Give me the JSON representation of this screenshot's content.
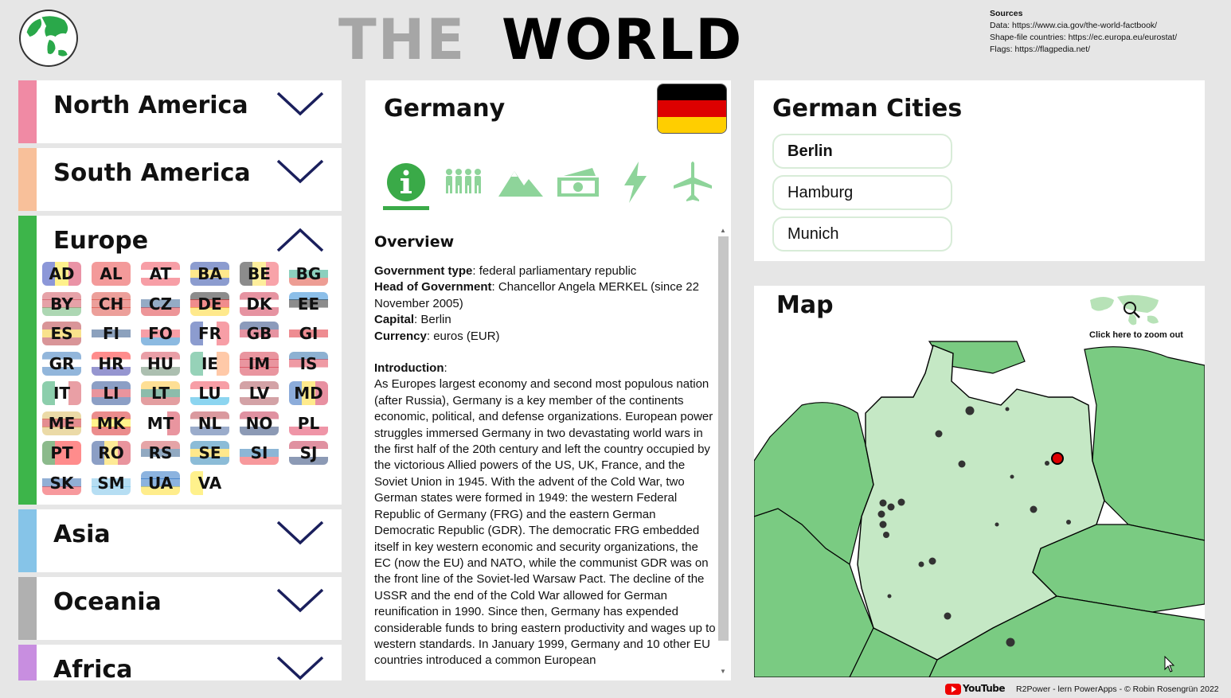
{
  "header": {
    "title_left": "THE",
    "title_right": "WORLD",
    "sources_title": "Sources",
    "sources": [
      "Data: https://www.cia.gov/the-world-factbook/",
      "Shape-file countries: https://ec.europa.eu/eurostat/",
      "Flags: https://flagpedia.net/"
    ]
  },
  "continents": [
    {
      "name": "North America",
      "color": "#f08aa4",
      "expanded": false
    },
    {
      "name": "South America",
      "color": "#f8c09a",
      "expanded": false
    },
    {
      "name": "Europe",
      "color": "#3db54a",
      "expanded": true
    },
    {
      "name": "Asia",
      "color": "#86c4e8",
      "expanded": false
    },
    {
      "name": "Oceania",
      "color": "#b0b0b0",
      "expanded": false
    },
    {
      "name": "Africa",
      "color": "#c88ee0",
      "expanded": false
    }
  ],
  "europe_flags": [
    "AD",
    "AL",
    "AT",
    "BA",
    "BE",
    "BG",
    "BY",
    "CH",
    "CZ",
    "DE",
    "DK",
    "EE",
    "ES",
    "FI",
    "FO",
    "FR",
    "GB",
    "GI",
    "GR",
    "HR",
    "HU",
    "IE",
    "IM",
    "IS",
    "IT",
    "LI",
    "LT",
    "LU",
    "LV",
    "MD",
    "ME",
    "MK",
    "MT",
    "NL",
    "NO",
    "PL",
    "PT",
    "RO",
    "RS",
    "SE",
    "SI",
    "SJ",
    "SK",
    "SM",
    "UA",
    "VA"
  ],
  "country": {
    "name": "Germany",
    "section_title": "Overview",
    "government_label": "Government type",
    "government": ": federal parliamentary republic",
    "head_label": "Head of Government",
    "head": ": Chancellor Angela MERKEL (since 22 November 2005)",
    "capital_label": "Capital",
    "capital": ": Berlin",
    "currency_label": "Currency",
    "currency": ": euros (EUR)",
    "intro_label": "Introduction",
    "intro_colon": ":",
    "intro": "As Europes largest economy and second most populous nation (after Russia), Germany is a key member of the continents economic, political, and defense organizations. European power struggles immersed Germany in two devastating world wars in the first half of the 20th century and left the country occupied by the victorious Allied powers of the US, UK, France, and the Soviet Union in 1945. With the advent of the Cold War, two German states were formed in 1949: the western Federal Republic of Germany (FRG) and the eastern German Democratic Republic (GDR). The democratic FRG embedded itself in key western economic and security organizations, the EC (now the EU) and NATO, while the communist GDR was on the front line of the Soviet-led Warsaw Pact. The decline of the USSR and the end of the Cold War allowed for German reunification in 1990. Since then, Germany has expended considerable funds to bring eastern productivity and wages up to western standards. In January 1999, Germany and 10 other EU countries introduced a common European",
    "tabs": [
      "info-icon",
      "people-icon",
      "mountain-icon",
      "money-icon",
      "energy-icon",
      "airplane-icon"
    ],
    "active_tab": "info-icon",
    "flag_colors": [
      "#000000",
      "#dd0000",
      "#ffce00"
    ]
  },
  "cities": {
    "title": "German Cities",
    "items": [
      "Berlin",
      "Hamburg",
      "Munich"
    ],
    "selected": "Berlin"
  },
  "map": {
    "title": "Map",
    "zoom_out_label": "Click here to zoom out"
  },
  "footer": {
    "youtube": "YouTube",
    "credit": "R2Power - lern PowerApps - © Robin Rosengrün 2022"
  },
  "colors": {
    "accent": "#3aaa48",
    "land_light": "#c5e8c5",
    "land_dark": "#7acb82"
  }
}
